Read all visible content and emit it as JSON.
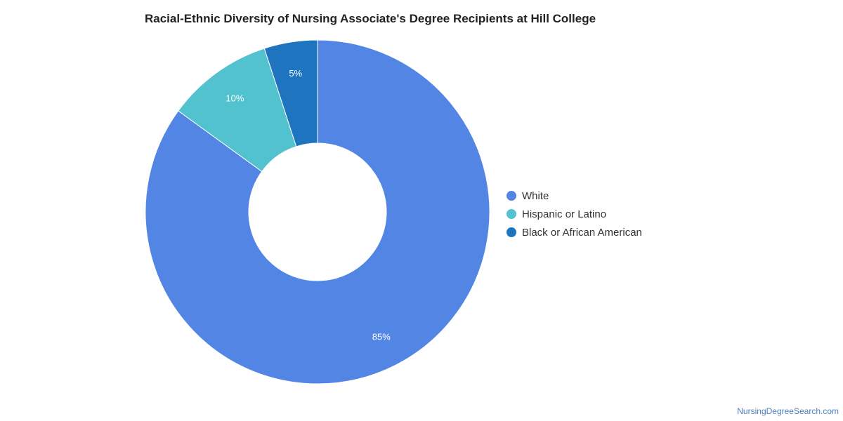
{
  "chart_data": {
    "type": "pie",
    "variant": "donut",
    "title": "Racial-Ethnic Diversity of Nursing Associate's Degree Recipients at Hill College",
    "categories": [
      "White",
      "Hispanic or Latino",
      "Black or African American"
    ],
    "values": [
      85,
      10,
      5
    ],
    "data_labels": [
      "85%",
      "10%",
      "5%"
    ],
    "colors": [
      "#5386e4",
      "#51c2ce",
      "#1f74c0"
    ],
    "legend_position": "right"
  },
  "footer": {
    "source": "NursingDegreeSearch.com"
  }
}
